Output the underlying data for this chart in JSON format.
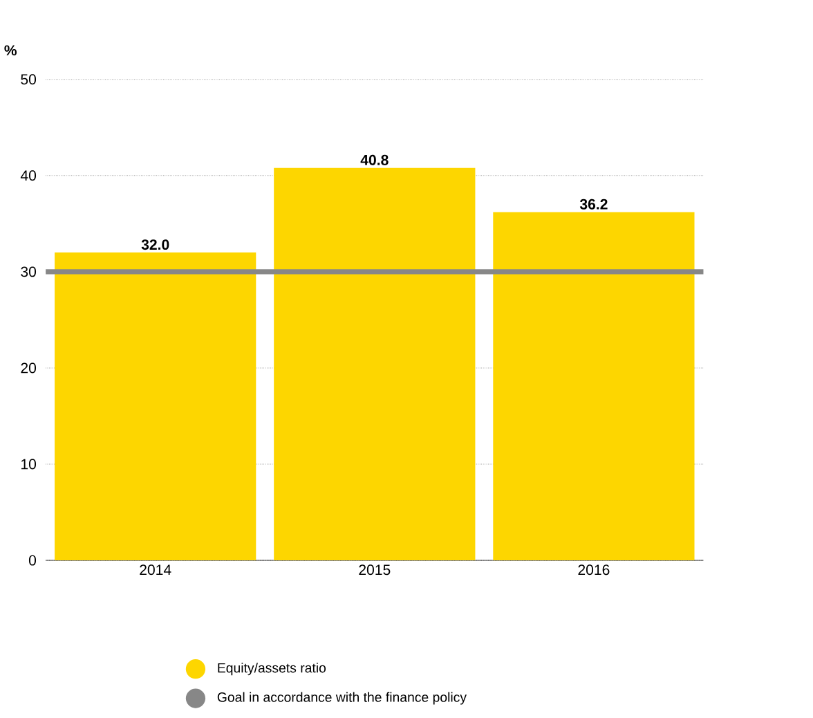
{
  "chart_data": {
    "type": "bar",
    "ylabel": "%",
    "categories": [
      "2014",
      "2015",
      "2016"
    ],
    "series": [
      {
        "name": "Equity/assets ratio",
        "color": "#fdd600",
        "values": [
          32.0,
          40.8,
          36.2
        ],
        "value_labels": [
          "32.0",
          "40.8",
          "36.2"
        ]
      }
    ],
    "ref_lines": [
      {
        "axis": "y",
        "value": 30,
        "label": "Goal in accordance with the finance policy",
        "color": "#878787"
      }
    ],
    "ylim": [
      0,
      50
    ],
    "yticks": [
      0,
      10,
      20,
      30,
      40,
      50
    ],
    "grid": "y",
    "legend": "bottom"
  }
}
